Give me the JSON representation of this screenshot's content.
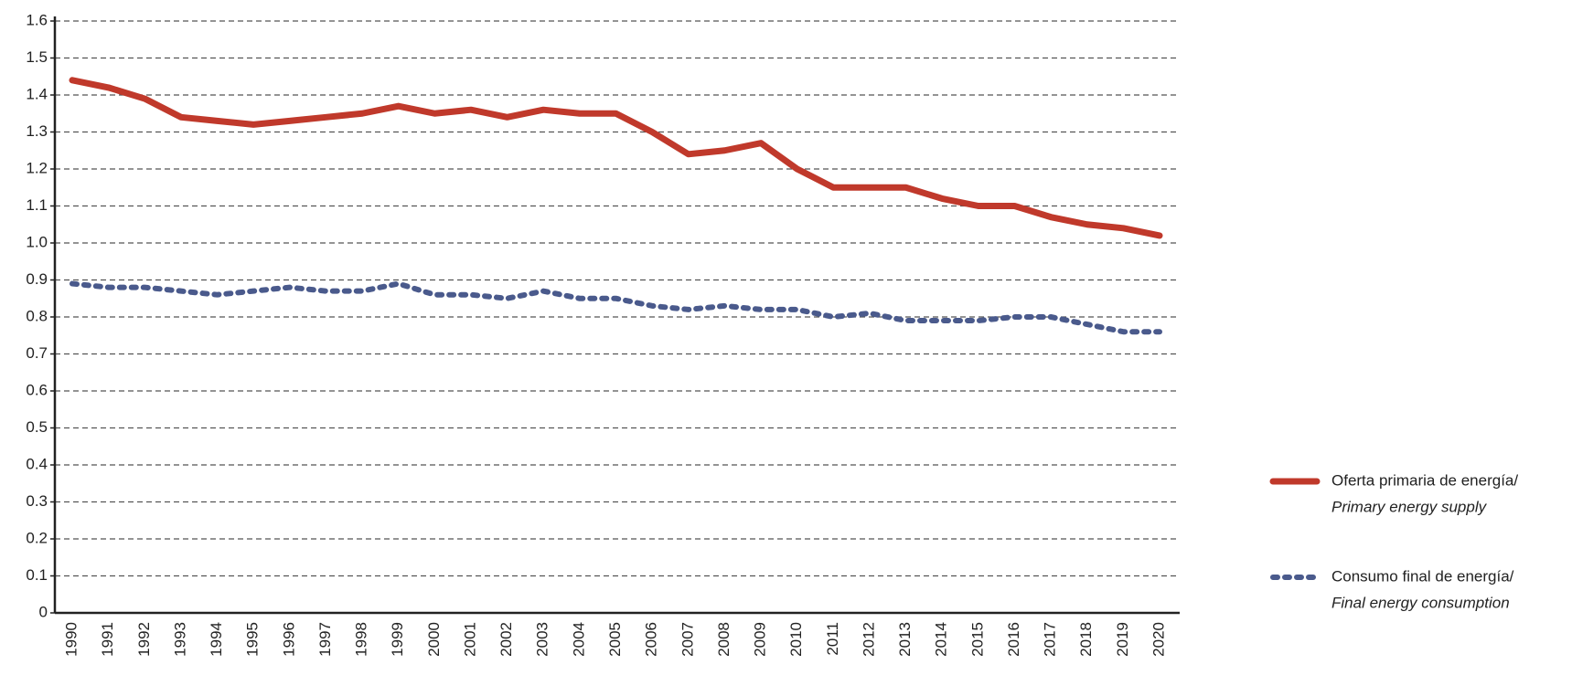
{
  "chart_data": {
    "type": "line",
    "categories": [
      "1990",
      "1991",
      "1992",
      "1993",
      "1994",
      "1995",
      "1996",
      "1997",
      "1998",
      "1999",
      "2000",
      "2001",
      "2002",
      "2003",
      "2004",
      "2005",
      "2006",
      "2007",
      "2008",
      "2009",
      "2010",
      "2011",
      "2012",
      "2013",
      "2014",
      "2015",
      "2016",
      "2017",
      "2018",
      "2019",
      "2020"
    ],
    "series": [
      {
        "name": "Oferta primaria de energía/",
        "name_2": "Primary energy supply",
        "color": "#c0392b",
        "dashed": false,
        "values": [
          1.44,
          1.42,
          1.39,
          1.34,
          1.33,
          1.32,
          1.33,
          1.34,
          1.35,
          1.37,
          1.35,
          1.36,
          1.34,
          1.36,
          1.35,
          1.35,
          1.3,
          1.24,
          1.25,
          1.27,
          1.2,
          1.15,
          1.15,
          1.15,
          1.12,
          1.1,
          1.1,
          1.07,
          1.05,
          1.04,
          1.02
        ]
      },
      {
        "name": "Consumo final de energía/",
        "name_2": "Final energy consumption",
        "color": "#4a5a8c",
        "dashed": true,
        "values": [
          0.89,
          0.88,
          0.88,
          0.87,
          0.86,
          0.87,
          0.88,
          0.87,
          0.87,
          0.89,
          0.86,
          0.86,
          0.85,
          0.87,
          0.85,
          0.85,
          0.83,
          0.82,
          0.83,
          0.82,
          0.82,
          0.8,
          0.81,
          0.79,
          0.79,
          0.79,
          0.8,
          0.8,
          0.78,
          0.76,
          0.76
        ]
      }
    ],
    "ylim": [
      0,
      1.6
    ],
    "yticks": [
      0,
      0.1,
      0.2,
      0.3,
      0.4,
      0.5,
      0.6,
      0.7,
      0.8,
      0.9,
      {
        "value": 1,
        "label": "1.0"
      },
      1.1,
      1.2,
      1.3,
      1.4,
      1.5,
      1.6
    ],
    "grid": true,
    "legend": "right"
  }
}
